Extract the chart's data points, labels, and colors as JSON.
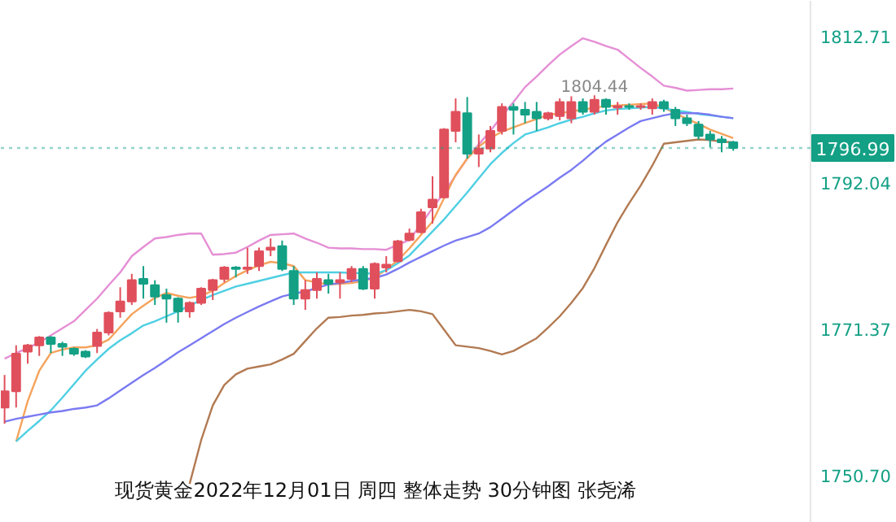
{
  "chart_data": {
    "type": "candlestick",
    "title": "现货黄金2022年12月01日 周四 整体走势 30分钟图 张尧浠",
    "categories": [
      null,
      null,
      null,
      null,
      null,
      null,
      null,
      null,
      null,
      null,
      null,
      null,
      null,
      null,
      null,
      null,
      null,
      null,
      null,
      null,
      null,
      null,
      null,
      null,
      null,
      null,
      null,
      null,
      null,
      null,
      null,
      null,
      null,
      null,
      null,
      null,
      null,
      null,
      null,
      null,
      null,
      null,
      null,
      null,
      null,
      null,
      null,
      null,
      null,
      null,
      null,
      null,
      null,
      null,
      null,
      null,
      null,
      null,
      null,
      null,
      null,
      null,
      null,
      null
    ],
    "ohlc": [
      [
        1760.3,
        1764.9,
        1758.0,
        1762.6
      ],
      [
        1762.6,
        1769.1,
        1760.3,
        1767.9
      ],
      [
        1768.2,
        1769.3,
        1766.5,
        1769.1
      ],
      [
        1769.1,
        1770.4,
        1767.6,
        1770.2
      ],
      [
        1770.2,
        1770.4,
        1768.0,
        1769.3
      ],
      [
        1769.3,
        1769.6,
        1767.6,
        1768.9
      ],
      [
        1768.6,
        1768.8,
        1767.6,
        1767.9
      ],
      [
        1768.2,
        1768.4,
        1767.3,
        1767.5
      ],
      [
        1769.0,
        1771.4,
        1768.0,
        1770.9
      ],
      [
        1770.9,
        1773.9,
        1770.5,
        1773.7
      ],
      [
        1773.9,
        1777.3,
        1773.0,
        1775.3
      ],
      [
        1775.3,
        1779.2,
        1774.8,
        1778.3
      ],
      [
        1778.5,
        1780.3,
        1775.7,
        1777.8
      ],
      [
        1777.6,
        1778.3,
        1774.8,
        1776.0
      ],
      [
        1776.2,
        1777.1,
        1772.3,
        1775.7
      ],
      [
        1775.7,
        1775.9,
        1772.3,
        1773.9
      ],
      [
        1773.9,
        1775.3,
        1773.0,
        1775.1
      ],
      [
        1775.1,
        1777.3,
        1774.8,
        1777.1
      ],
      [
        1776.9,
        1778.5,
        1775.5,
        1778.3
      ],
      [
        1778.5,
        1780.3,
        1778.0,
        1780.1
      ],
      [
        1780.1,
        1780.3,
        1778.7,
        1779.9
      ],
      [
        1779.9,
        1782.9,
        1779.2,
        1780.1
      ],
      [
        1780.3,
        1782.9,
        1779.6,
        1782.4
      ],
      [
        1782.6,
        1784.2,
        1781.7,
        1782.9
      ],
      [
        1783.1,
        1783.9,
        1779.6,
        1779.9
      ],
      [
        1779.6,
        1780.3,
        1774.8,
        1775.7
      ],
      [
        1775.7,
        1778.3,
        1774.1,
        1776.9
      ],
      [
        1776.9,
        1779.4,
        1775.7,
        1778.5
      ],
      [
        1778.3,
        1779.2,
        1776.4,
        1777.8
      ],
      [
        1778.0,
        1779.4,
        1775.7,
        1778.3
      ],
      [
        1778.5,
        1780.3,
        1778.0,
        1779.9
      ],
      [
        1779.9,
        1780.3,
        1776.9,
        1777.1
      ],
      [
        1777.1,
        1780.8,
        1775.7,
        1780.6
      ],
      [
        1780.1,
        1781.7,
        1779.4,
        1780.5
      ],
      [
        1781.0,
        1784.0,
        1780.8,
        1783.8
      ],
      [
        1784.0,
        1785.6,
        1783.8,
        1784.9
      ],
      [
        1785.1,
        1788.4,
        1784.9,
        1787.9
      ],
      [
        1788.6,
        1793.0,
        1786.3,
        1789.7
      ],
      [
        1790.0,
        1799.8,
        1789.9,
        1799.6
      ],
      [
        1799.4,
        1804.0,
        1797.8,
        1802.1
      ],
      [
        1801.9,
        1804.2,
        1795.5,
        1796.2
      ],
      [
        1796.2,
        1798.9,
        1794.3,
        1796.9
      ],
      [
        1796.9,
        1800.1,
        1796.4,
        1799.4
      ],
      [
        1799.4,
        1803.3,
        1798.9,
        1802.8
      ],
      [
        1802.8,
        1803.3,
        1798.9,
        1802.4
      ],
      [
        1802.4,
        1803.5,
        1800.5,
        1801.7
      ],
      [
        1802.1,
        1803.5,
        1799.4,
        1801.2
      ],
      [
        1801.2,
        1802.1,
        1800.9,
        1801.9
      ],
      [
        1801.5,
        1804.0,
        1800.9,
        1803.5
      ],
      [
        1801.2,
        1804.3,
        1800.5,
        1803.5
      ],
      [
        1803.5,
        1804.0,
        1801.7,
        1802.1
      ],
      [
        1802.1,
        1804.44,
        1801.7,
        1803.8
      ],
      [
        1803.8,
        1804.0,
        1801.7,
        1802.8
      ],
      [
        1802.7,
        1803.5,
        1801.7,
        1802.9
      ],
      [
        1802.9,
        1803.3,
        1802.4,
        1802.8
      ],
      [
        1802.8,
        1803.3,
        1802.4,
        1802.9
      ],
      [
        1802.6,
        1804.0,
        1801.7,
        1803.5
      ],
      [
        1803.5,
        1803.8,
        1802.1,
        1802.6
      ],
      [
        1802.4,
        1802.8,
        1800.1,
        1801.2
      ],
      [
        1801.2,
        1801.7,
        1800.1,
        1800.5
      ],
      [
        1800.3,
        1800.8,
        1798.2,
        1798.7
      ],
      [
        1798.9,
        1799.4,
        1797.1,
        1798.2
      ],
      [
        1798.2,
        1798.7,
        1796.4,
        1797.8
      ],
      [
        1797.8,
        1798.0,
        1796.6,
        1796.99
      ]
    ],
    "colors": [
      "#e0505c",
      "#e0505c",
      "#e0505c",
      "#e0505c",
      "#13a085",
      "#13a085",
      "#13a085",
      "#13a085",
      "#e0505c",
      "#e0505c",
      "#e0505c",
      "#e0505c",
      "#13a085",
      "#13a085",
      "#13a085",
      "#13a085",
      "#e0505c",
      "#e0505c",
      "#e0505c",
      "#e0505c",
      "#13a085",
      "#e0505c",
      "#e0505c",
      "#e0505c",
      "#13a085",
      "#13a085",
      "#e0505c",
      "#e0505c",
      "#13a085",
      "#e0505c",
      "#e0505c",
      "#13a085",
      "#e0505c",
      "#e0505c",
      "#e0505c",
      "#e0505c",
      "#e0505c",
      "#e0505c",
      "#e0505c",
      "#e0505c",
      "#13a085",
      "#e0505c",
      "#e0505c",
      "#e0505c",
      "#13a085",
      "#13a085",
      "#13a085",
      "#e0505c",
      "#e0505c",
      "#e0505c",
      "#13a085",
      "#e0505c",
      "#13a085",
      "#e0505c",
      "#13a085",
      "#e0505c",
      "#e0505c",
      "#13a085",
      "#13a085",
      "#13a085",
      "#13a085",
      "#13a085",
      "#13a085",
      "#13a085"
    ],
    "series": [
      {
        "type": "line",
        "color": "#e58fd5",
        "values": [
          1767.2,
          1768.0,
          1768.7,
          1769.5,
          1770.5,
          1771.5,
          1772.5,
          1774.1,
          1775.7,
          1777.6,
          1779.4,
          1781.7,
          1783.0,
          1784.2,
          1784.4,
          1784.7,
          1784.9,
          1784.9,
          1781.9,
          1782.0,
          1782.2,
          1783.0,
          1783.9,
          1784.7,
          1784.8,
          1784.9,
          1784.2,
          1783.6,
          1782.9,
          1782.8,
          1782.8,
          1782.7,
          1782.7,
          1782.6,
          1783.3,
          1784.0,
          1786.2,
          1788.5,
          1790.7,
          1793.1,
          1795.5,
          1797.5,
          1799.4,
          1801.5,
          1803.5,
          1805.6,
          1807.1,
          1808.7,
          1810.2,
          1811.4,
          1812.5,
          1812.0,
          1811.4,
          1810.9,
          1809.6,
          1808.3,
          1807.1,
          1805.8,
          1805.5,
          1805.1,
          1805.2,
          1805.3,
          1805.3,
          1805.4
        ]
      },
      {
        "type": "line",
        "color": "#f5a35c",
        "values": [
          null,
          1755.5,
          1761.2,
          1765.5,
          1768.0,
          1768.5,
          1768.8,
          1768.8,
          1769.1,
          1769.9,
          1771.7,
          1773.5,
          1774.7,
          1775.8,
          1776.5,
          1776.1,
          1775.8,
          1776.1,
          1776.8,
          1777.9,
          1778.9,
          1779.7,
          1780.4,
          1780.9,
          1780.7,
          1780.3,
          1778.3,
          1778.0,
          1777.7,
          1777.8,
          1777.9,
          1778.2,
          1778.7,
          1779.8,
          1781.1,
          1782.8,
          1784.7,
          1786.6,
          1789.9,
          1793.2,
          1795.5,
          1797.2,
          1798.4,
          1799.3,
          1799.9,
          1800.5,
          1801.1,
          1801.7,
          1801.9,
          1802.2,
          1802.4,
          1802.7,
          1802.9,
          1803.0,
          1803.1,
          1803.2,
          1803.3,
          1802.7,
          1801.9,
          1801.1,
          1800.4,
          1799.6,
          1799.0,
          1798.4
        ]
      },
      {
        "type": "line",
        "color": "#4fcfe3",
        "values": [
          null,
          1755.5,
          1757.0,
          1758.4,
          1759.9,
          1761.7,
          1763.6,
          1765.5,
          1767.1,
          1768.6,
          1769.8,
          1770.8,
          1771.9,
          1772.5,
          1773.2,
          1773.9,
          1774.7,
          1775.5,
          1776.2,
          1776.8,
          1777.4,
          1777.8,
          1778.2,
          1778.6,
          1779.0,
          1779.4,
          1779.4,
          1779.4,
          1779.4,
          1779.4,
          1779.3,
          1779.3,
          1779.2,
          1779.7,
          1780.7,
          1781.8,
          1783.5,
          1785.2,
          1786.9,
          1788.8,
          1790.7,
          1792.7,
          1794.7,
          1796.3,
          1797.7,
          1798.9,
          1799.4,
          1799.9,
          1800.5,
          1801.0,
          1801.4,
          1801.9,
          1802.3,
          1802.5,
          1802.6,
          1802.7,
          1802.8,
          1802.6,
          1802.3,
          1802.1,
          1801.8,
          1801.6,
          1801.4,
          1801.2
        ]
      },
      {
        "type": "line",
        "color": "#7a7af2",
        "values": [
          1758.3,
          1758.7,
          1759.0,
          1759.3,
          1759.6,
          1759.8,
          1760.1,
          1760.3,
          1760.6,
          1761.6,
          1762.7,
          1763.8,
          1764.9,
          1765.9,
          1767.0,
          1768.1,
          1769.1,
          1770.1,
          1771.1,
          1772.1,
          1773.0,
          1773.8,
          1774.6,
          1775.3,
          1776.0,
          1776.4,
          1776.7,
          1777.2,
          1777.7,
          1777.9,
          1778.2,
          1778.4,
          1778.6,
          1779.1,
          1779.9,
          1780.8,
          1781.6,
          1782.4,
          1783.2,
          1783.9,
          1784.4,
          1784.9,
          1785.8,
          1787.0,
          1788.2,
          1789.4,
          1790.5,
          1791.6,
          1792.8,
          1793.9,
          1795.2,
          1796.6,
          1797.9,
          1798.9,
          1799.9,
          1800.8,
          1801.2,
          1801.6,
          1801.9,
          1801.9,
          1801.9,
          1801.7,
          1801.4,
          1801.2
        ]
      },
      {
        "type": "line",
        "color": "#b27a52",
        "values": [
          null,
          null,
          null,
          null,
          null,
          null,
          null,
          null,
          null,
          null,
          null,
          null,
          null,
          null,
          null,
          null,
          1749.5,
          1755.7,
          1760.6,
          1763.5,
          1765.0,
          1765.8,
          1766.1,
          1766.4,
          1767.1,
          1767.9,
          1769.7,
          1771.5,
          1773.0,
          1773.1,
          1773.3,
          1773.4,
          1773.6,
          1773.7,
          1773.9,
          1774.1,
          1773.9,
          1773.5,
          1771.3,
          1769.1,
          1768.9,
          1768.7,
          1768.3,
          1767.8,
          1768.3,
          1769.2,
          1770.1,
          1771.6,
          1773.2,
          1775.1,
          1777.2,
          1780.0,
          1783.3,
          1786.5,
          1789.2,
          1791.7,
          1794.5,
          1797.6,
          1797.8,
          1798.0,
          1798.2,
          1798.1,
          1797.9,
          1797.8
        ]
      }
    ],
    "ylim": [
      1744.0,
      1817.8
    ],
    "yticks": [
      {
        "value": 1750.7,
        "label": "1750.70"
      },
      {
        "value": 1771.37,
        "label": "1771.37"
      },
      {
        "value": 1792.04,
        "label": "1792.04"
      },
      {
        "value": 1812.71,
        "label": "1812.71"
      }
    ],
    "tick_labels": "y",
    "ref_lines": [
      {
        "axis": "y",
        "value": 1796.99,
        "label": "1796.99",
        "color": "#13a085",
        "line_style": "dotted"
      }
    ],
    "annotations": [
      {
        "text": "1804.44",
        "y": 1804.44
      }
    ]
  }
}
